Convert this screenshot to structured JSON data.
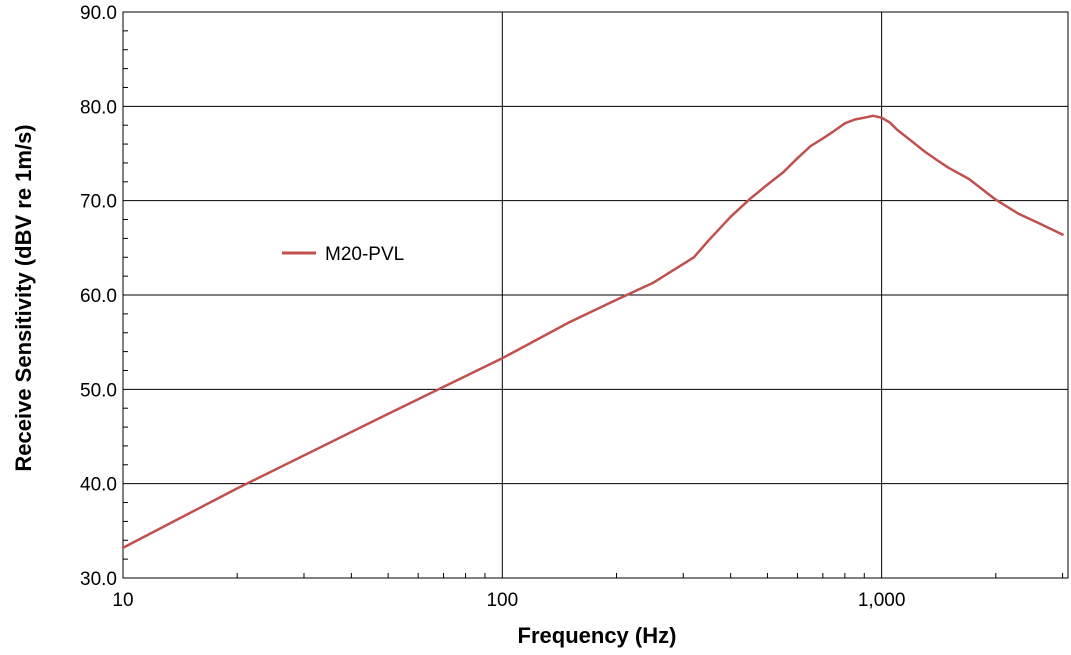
{
  "chart_data": {
    "type": "line",
    "xlabel": "Frequency (Hz)",
    "ylabel": "Receive Sensitivity (dBV re 1m/s)",
    "x_scale": "log",
    "xlim": [
      10,
      3100
    ],
    "ylim": [
      30,
      90
    ],
    "x_ticks": [
      10,
      100,
      1000
    ],
    "x_tick_labels": [
      "10",
      "100",
      "1,000"
    ],
    "y_ticks": [
      30,
      40,
      50,
      60,
      70,
      80,
      90
    ],
    "y_tick_labels": [
      "30.0",
      "40.0",
      "50.0",
      "60.0",
      "70.0",
      "80.0",
      "90.0"
    ],
    "grid": true,
    "legend_position": "left",
    "series": [
      {
        "name": "M20-PVL",
        "color": "#c0504d",
        "x": [
          10,
          20,
          50,
          100,
          150,
          200,
          250,
          300,
          320,
          350,
          400,
          450,
          500,
          550,
          600,
          650,
          700,
          750,
          800,
          850,
          900,
          950,
          1000,
          1050,
          1100,
          1200,
          1300,
          1400,
          1500,
          1700,
          2000,
          2300,
          2600,
          3000
        ],
        "y": [
          33.2,
          39.5,
          47.4,
          53.3,
          57.1,
          59.5,
          61.3,
          63.3,
          64.0,
          65.8,
          68.3,
          70.2,
          71.7,
          73.0,
          74.5,
          75.8,
          76.6,
          77.4,
          78.2,
          78.6,
          78.8,
          79.0,
          78.8,
          78.3,
          77.5,
          76.3,
          75.2,
          74.3,
          73.5,
          72.3,
          70.1,
          68.6,
          67.6,
          66.4
        ]
      }
    ]
  }
}
